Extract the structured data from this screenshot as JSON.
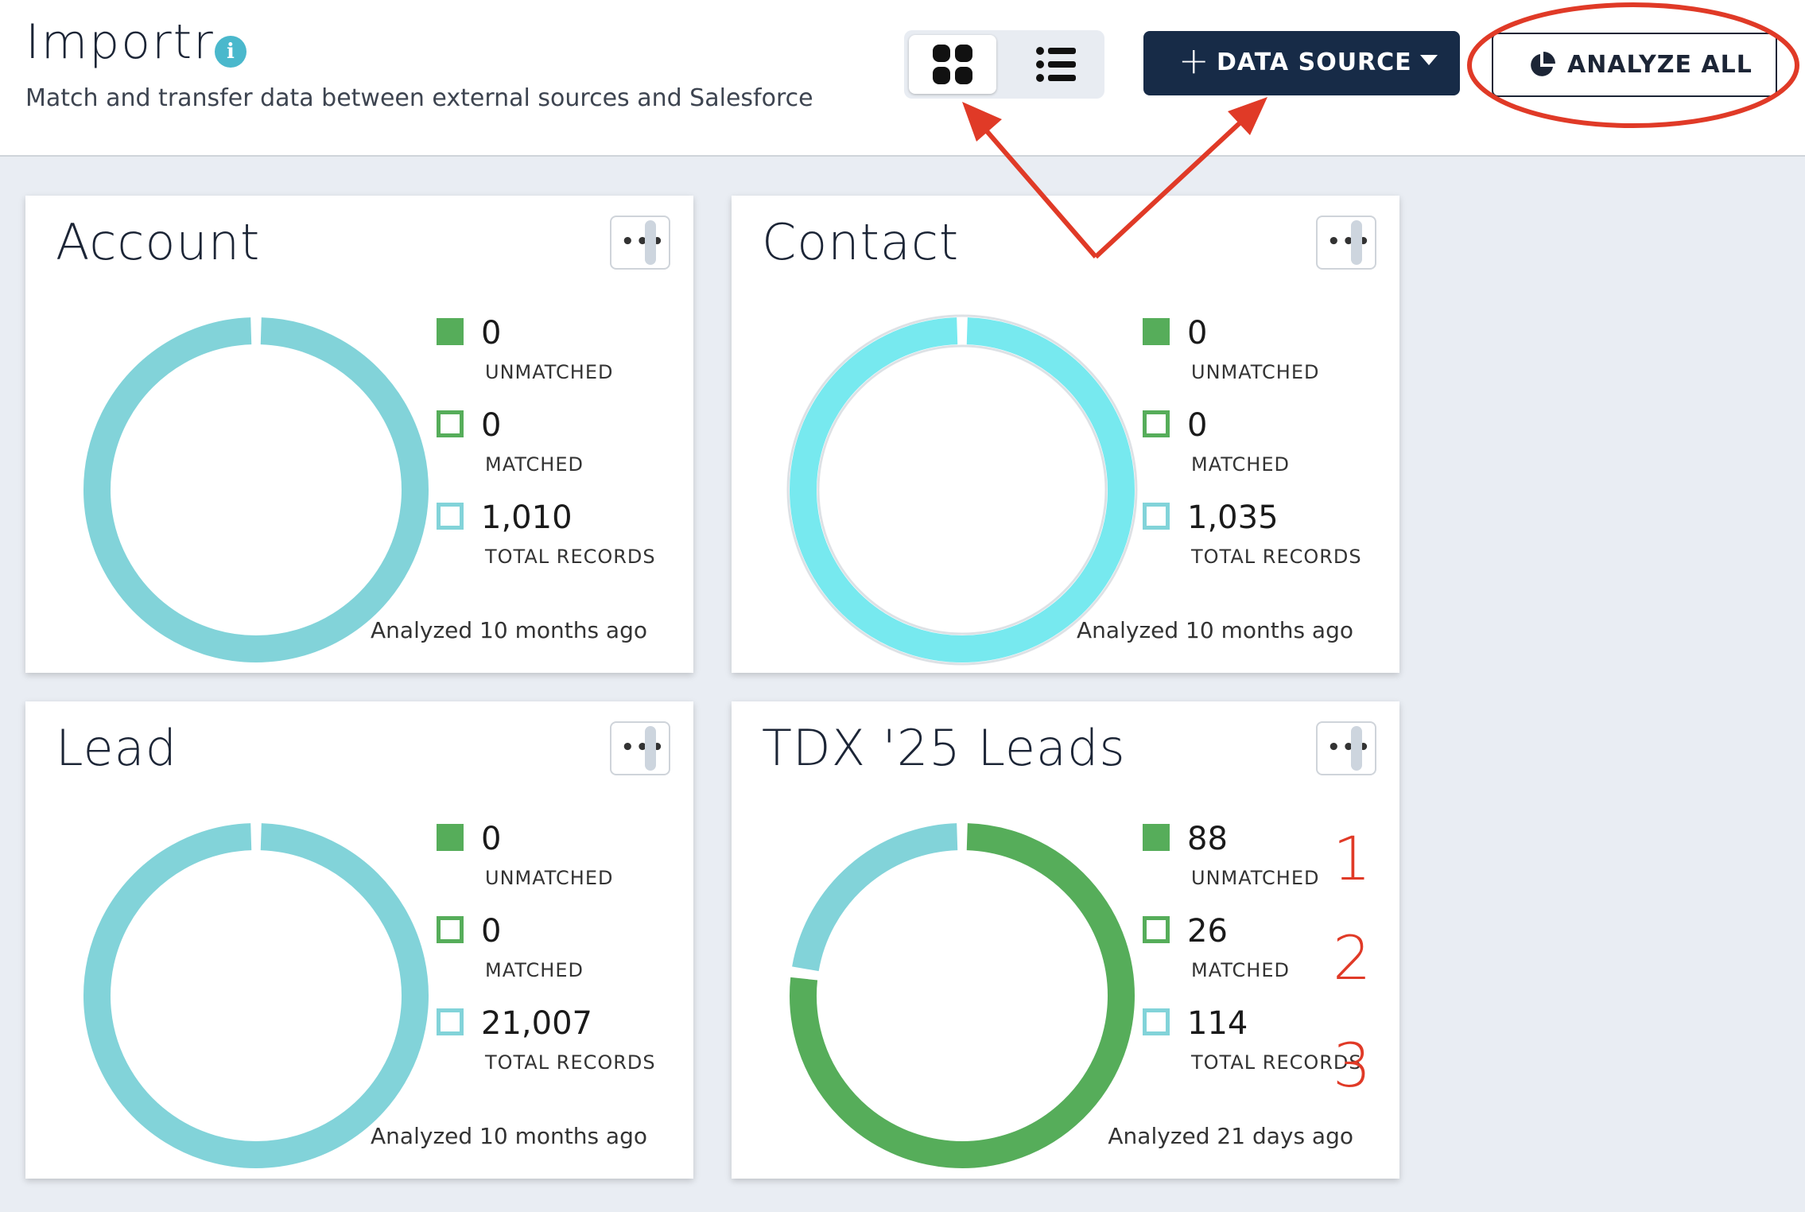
{
  "header": {
    "title": "Importr",
    "info_icon_glyph": "i",
    "subtitle": "Match and transfer data between external sources and Salesforce",
    "view_toggle": {
      "grid_icon": "grid-view-icon",
      "list_icon": "list-view-icon",
      "selected": "grid"
    },
    "data_source_button": {
      "plus": "+",
      "label": "DATA SOURCE"
    },
    "analyze_all_button": {
      "label": "ANALYZE ALL",
      "icon": "pie-chart-icon"
    }
  },
  "colors": {
    "unmatched": "#56ad5a",
    "matched": "#56ad5a",
    "total": "#82d3d9",
    "total_highlight": "#77e9ef",
    "brand_dark": "#172b47",
    "annotation": "#e03a27"
  },
  "cards": [
    {
      "title": "Account",
      "menu_glyph": "•••",
      "unmatched": {
        "value": "0",
        "label": "UNMATCHED"
      },
      "matched": {
        "value": "0",
        "label": "MATCHED"
      },
      "total": {
        "value": "1,010",
        "label": "TOTAL RECORDS"
      },
      "analyzed": "Analyzed 10 months ago",
      "chart_fraction_unmatched": 0
    },
    {
      "title": "Contact",
      "menu_glyph": "•••",
      "unmatched": {
        "value": "0",
        "label": "UNMATCHED"
      },
      "matched": {
        "value": "0",
        "label": "MATCHED"
      },
      "total": {
        "value": "1,035",
        "label": "TOTAL RECORDS"
      },
      "analyzed": "Analyzed 10 months ago",
      "chart_fraction_unmatched": 0
    },
    {
      "title": "Lead",
      "menu_glyph": "•••",
      "unmatched": {
        "value": "0",
        "label": "UNMATCHED"
      },
      "matched": {
        "value": "0",
        "label": "MATCHED"
      },
      "total": {
        "value": "21,007",
        "label": "TOTAL RECORDS"
      },
      "analyzed": "Analyzed 10 months ago",
      "chart_fraction_unmatched": 0
    },
    {
      "title": "TDX '25 Leads",
      "menu_glyph": "•••",
      "unmatched": {
        "value": "88",
        "label": "UNMATCHED"
      },
      "matched": {
        "value": "26",
        "label": "MATCHED"
      },
      "total": {
        "value": "114",
        "label": "TOTAL RECORDS"
      },
      "analyzed": "Analyzed 21 days ago",
      "chart_fraction_unmatched": 0.772
    }
  ],
  "annotations": {
    "numbers": [
      "1",
      "2",
      "3"
    ]
  }
}
